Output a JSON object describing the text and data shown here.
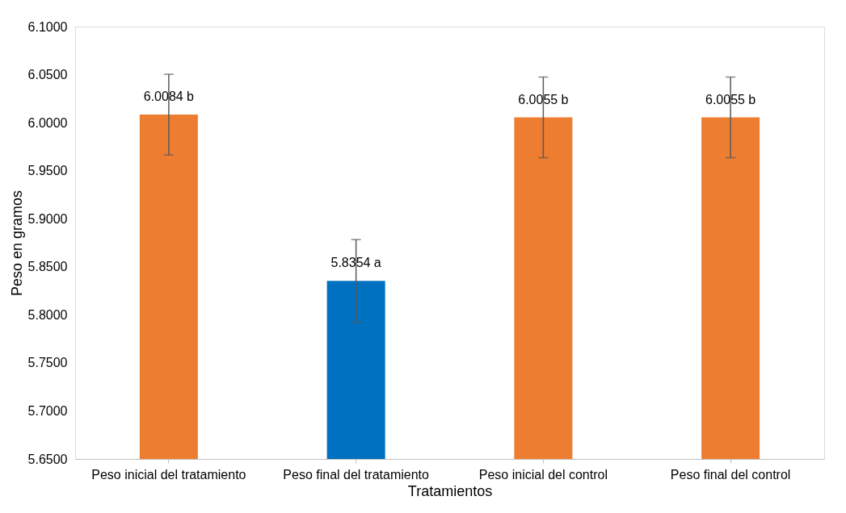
{
  "chart_data": {
    "type": "bar",
    "xlabel": "Tratamientos",
    "ylabel": "Peso en gramos",
    "categories": [
      "Peso inicial del tratamiento",
      "Peso final del tratamiento",
      "Peso inicial del control",
      "Peso final del control"
    ],
    "values": [
      6.0084,
      5.8354,
      6.0055,
      6.0055
    ],
    "colors": [
      "#ed7d31",
      "#0070c0",
      "#ed7d31",
      "#ed7d31"
    ],
    "errors": [
      0.042,
      0.043,
      0.042,
      0.042
    ],
    "value_labels": [
      "6.0084 b",
      "5.8354  a",
      "6.0055 b",
      "6.0055 b"
    ],
    "ylim": [
      5.65,
      6.1
    ],
    "yticks": [
      {
        "value": 5.65,
        "label": "5.6500"
      },
      {
        "value": 5.7,
        "label": "5.7000"
      },
      {
        "value": 5.75,
        "label": "5.7500"
      },
      {
        "value": 5.8,
        "label": "5.8000"
      },
      {
        "value": 5.85,
        "label": "5.8500"
      },
      {
        "value": 5.9,
        "label": "5.9000"
      },
      {
        "value": 5.95,
        "label": "5.9500"
      },
      {
        "value": 6.0,
        "label": "6.0000"
      },
      {
        "value": 6.05,
        "label": "6.0500"
      },
      {
        "value": 6.1,
        "label": "6.1000"
      }
    ],
    "grid": false
  }
}
